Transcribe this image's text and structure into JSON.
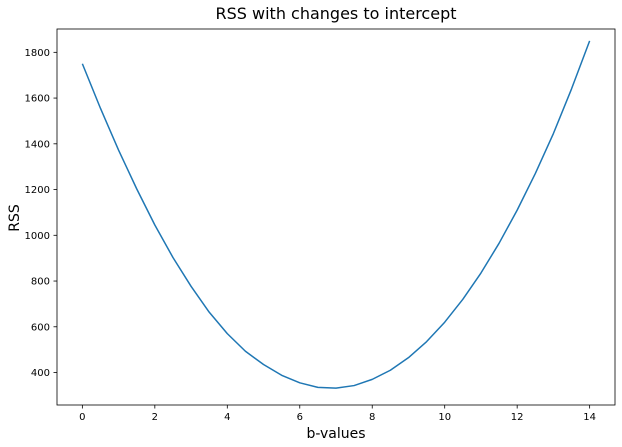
{
  "chart_data": {
    "type": "line",
    "title": "RSS with changes to intercept",
    "xlabel": "b-values",
    "ylabel": "RSS",
    "xlim": [
      -0.7,
      14.7
    ],
    "ylim": [
      258,
      1902
    ],
    "xticks": [
      0,
      2,
      4,
      6,
      8,
      10,
      12,
      14
    ],
    "yticks": [
      400,
      600,
      800,
      1000,
      1200,
      1400,
      1600,
      1800
    ],
    "grid": false,
    "legend": "none",
    "series": [
      {
        "color": "#1f77b4",
        "x": [
          0,
          0.5,
          1,
          1.5,
          2,
          2.5,
          3,
          3.5,
          4,
          4.5,
          5,
          5.5,
          6,
          6.5,
          7,
          7.5,
          8,
          8.5,
          9,
          9.5,
          10,
          10.5,
          11,
          11.5,
          12,
          12.5,
          13,
          13.5,
          14
        ],
        "y": [
          1750,
          1555,
          1372,
          1203,
          1045,
          903,
          777,
          664,
          570,
          493,
          435,
          388,
          355,
          335,
          332,
          343,
          370,
          410,
          465,
          535,
          620,
          720,
          835,
          965,
          1110,
          1270,
          1445,
          1640,
          1850
        ]
      }
    ]
  }
}
